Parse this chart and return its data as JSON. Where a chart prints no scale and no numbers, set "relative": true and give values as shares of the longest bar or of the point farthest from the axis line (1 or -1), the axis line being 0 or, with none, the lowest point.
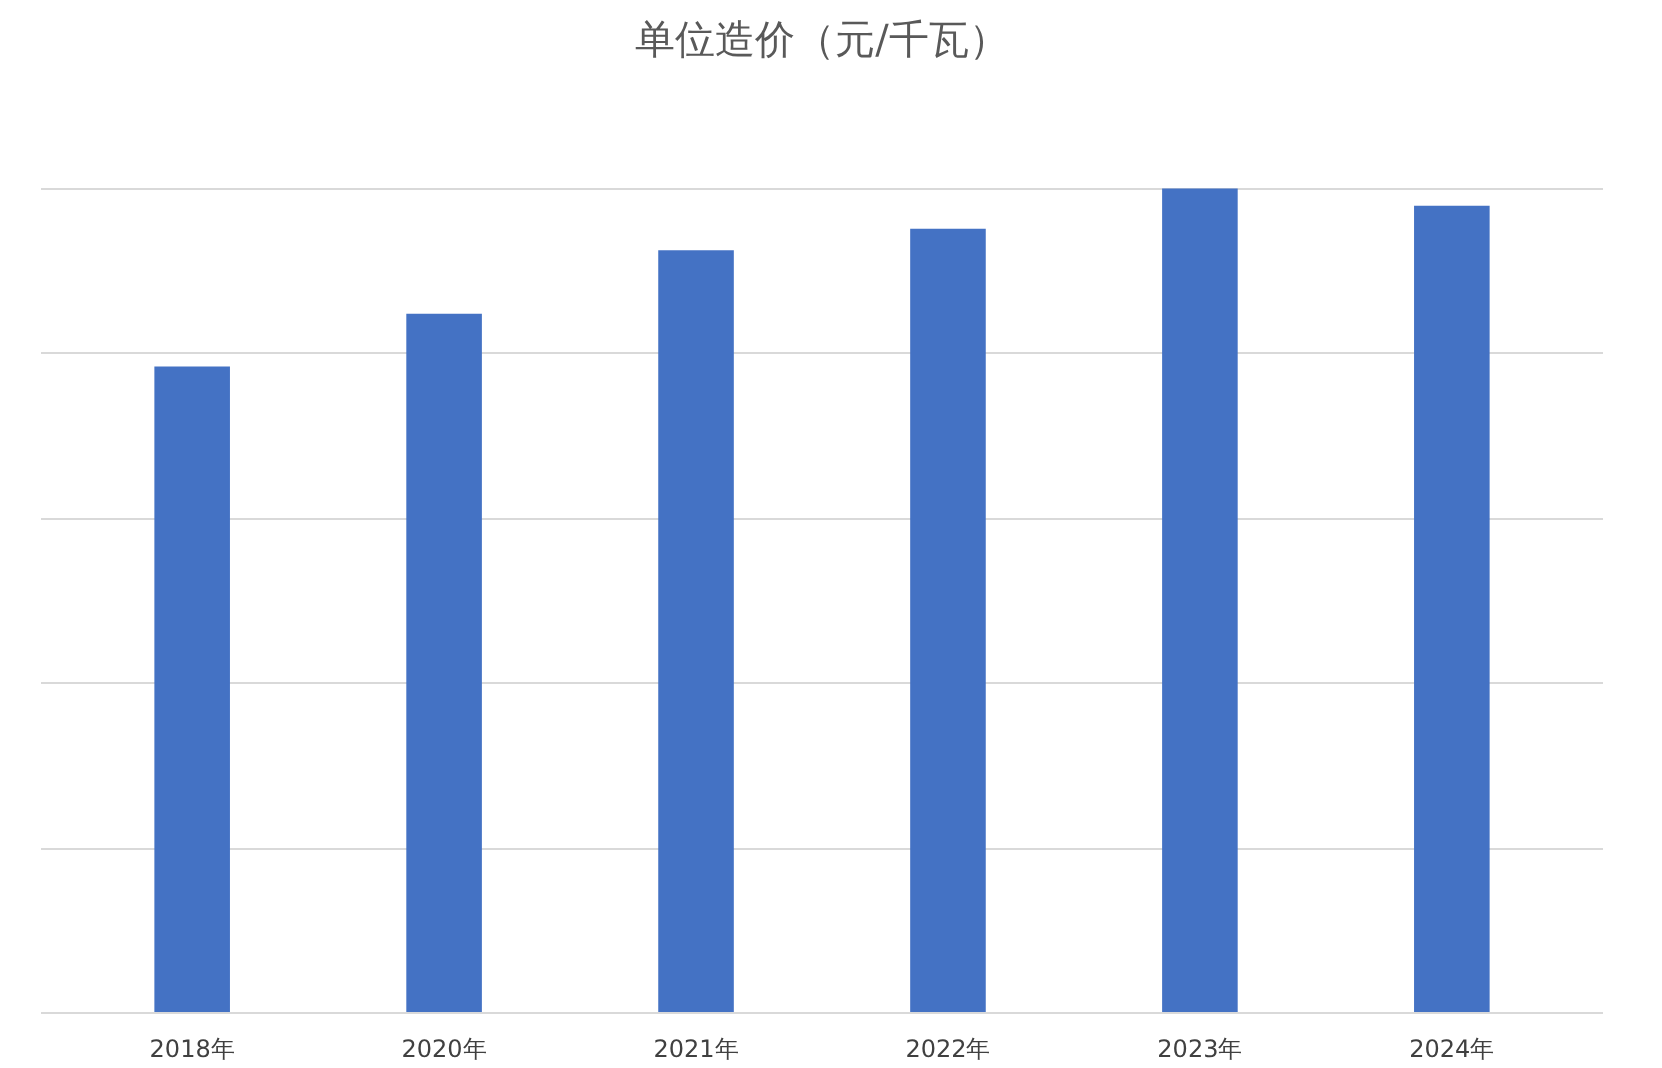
{
  "chart_data": {
    "type": "bar",
    "title": "单位造价（元/千瓦）",
    "categories": [
      "2018年",
      "2020年",
      "2021年",
      "2022年",
      "2023年",
      "2024年"
    ],
    "values": [
      0.784,
      0.848,
      0.925,
      0.951,
      1,
      0.979
    ],
    "color": "#4472c4",
    "relative": true,
    "grid": "y"
  }
}
